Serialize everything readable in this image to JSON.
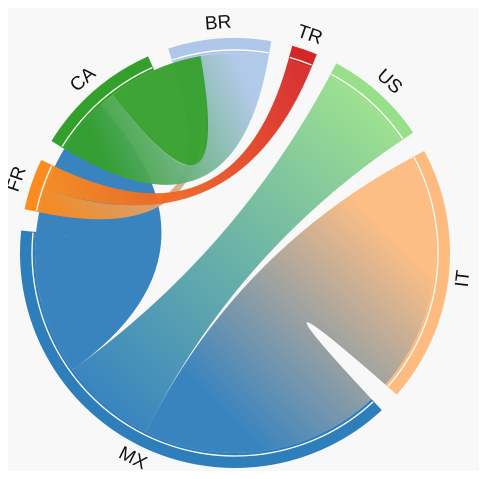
{
  "chart_data": {
    "type": "chord",
    "groups": [
      {
        "name": "MX",
        "color": "#2f7ebc",
        "total": 20
      },
      {
        "name": "FR",
        "color": "#fd8b1f",
        "total": 2
      },
      {
        "name": "CA",
        "color": "#34a02c",
        "total": 5
      },
      {
        "name": "BR",
        "color": "#aec7e8",
        "total": 4
      },
      {
        "name": "TR",
        "color": "#d62728",
        "total": 1
      },
      {
        "name": "US",
        "color": "#98df8a",
        "total": 4
      },
      {
        "name": "IT",
        "color": "#fdbb7f",
        "total": 10
      }
    ],
    "chords": [
      {
        "source": "MX",
        "target": "IT",
        "value": 10
      },
      {
        "source": "MX",
        "target": "US",
        "value": 4
      },
      {
        "source": "MX",
        "target": "MX",
        "value": 6
      },
      {
        "source": "FR",
        "target": "BR",
        "value": 1
      },
      {
        "source": "FR",
        "target": "TR",
        "value": 1
      },
      {
        "source": "CA",
        "target": "BR",
        "value": 3
      },
      {
        "source": "CA",
        "target": "CA",
        "value": 2
      }
    ]
  }
}
